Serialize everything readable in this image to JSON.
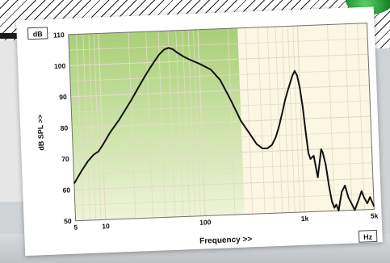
{
  "chart_data": {
    "type": "line",
    "unit_badge_y": "dB",
    "unit_badge_x": "Hz",
    "ylabel": "dB SPL >>",
    "xlabel": "Frequency >>",
    "x_scale": "log",
    "xlim": [
      5,
      5000
    ],
    "ylim": [
      50,
      110
    ],
    "y_ticks": [
      "50",
      "60",
      "70",
      "80",
      "90",
      "100",
      "110"
    ],
    "x_ticks": [
      {
        "value": 5,
        "label": "5"
      },
      {
        "value": 10,
        "label": "10"
      },
      {
        "value": 100,
        "label": "100"
      },
      {
        "value": 1000,
        "label": "1k"
      },
      {
        "value": 5000,
        "label": "5k"
      }
    ],
    "grid": true,
    "shaded_region_x": [
      5,
      250
    ],
    "colors": {
      "shade": "#b9d88a",
      "plot_bg": "#fbf7e2",
      "line": "#111111",
      "grid": "#e2dcc4"
    },
    "series": [
      {
        "x": [
          5,
          6,
          7,
          8,
          9,
          10,
          12,
          15,
          20,
          25,
          30,
          35,
          40,
          45,
          50,
          55,
          60,
          70,
          80,
          100,
          130,
          160,
          200,
          250,
          300,
          350,
          400,
          450,
          500,
          550,
          600,
          650,
          700,
          750,
          800,
          850,
          900,
          950,
          1000,
          1050,
          1100,
          1150,
          1200,
          1300,
          1400,
          1500,
          1550,
          1600,
          1700,
          1800,
          1900,
          2000,
          2100,
          2200,
          2400,
          2600,
          2800,
          3000,
          3200,
          3500,
          3800,
          4000,
          4300,
          4600,
          5000
        ],
        "y": [
          62,
          66,
          69,
          71,
          72,
          74,
          78,
          82,
          88,
          93,
          97,
          100,
          102.5,
          104,
          104.5,
          104,
          103,
          101.5,
          100.5,
          99,
          97,
          93.5,
          87,
          80,
          76,
          72.5,
          71,
          71,
          72,
          74.5,
          78,
          82,
          86,
          89,
          91.5,
          94,
          95.5,
          94,
          90,
          84,
          76,
          69,
          67,
          68,
          61,
          67,
          70,
          69,
          65,
          58,
          53,
          51,
          52,
          50,
          56,
          58,
          54,
          52,
          50,
          53,
          56,
          54,
          52,
          54,
          51
        ]
      }
    ]
  }
}
